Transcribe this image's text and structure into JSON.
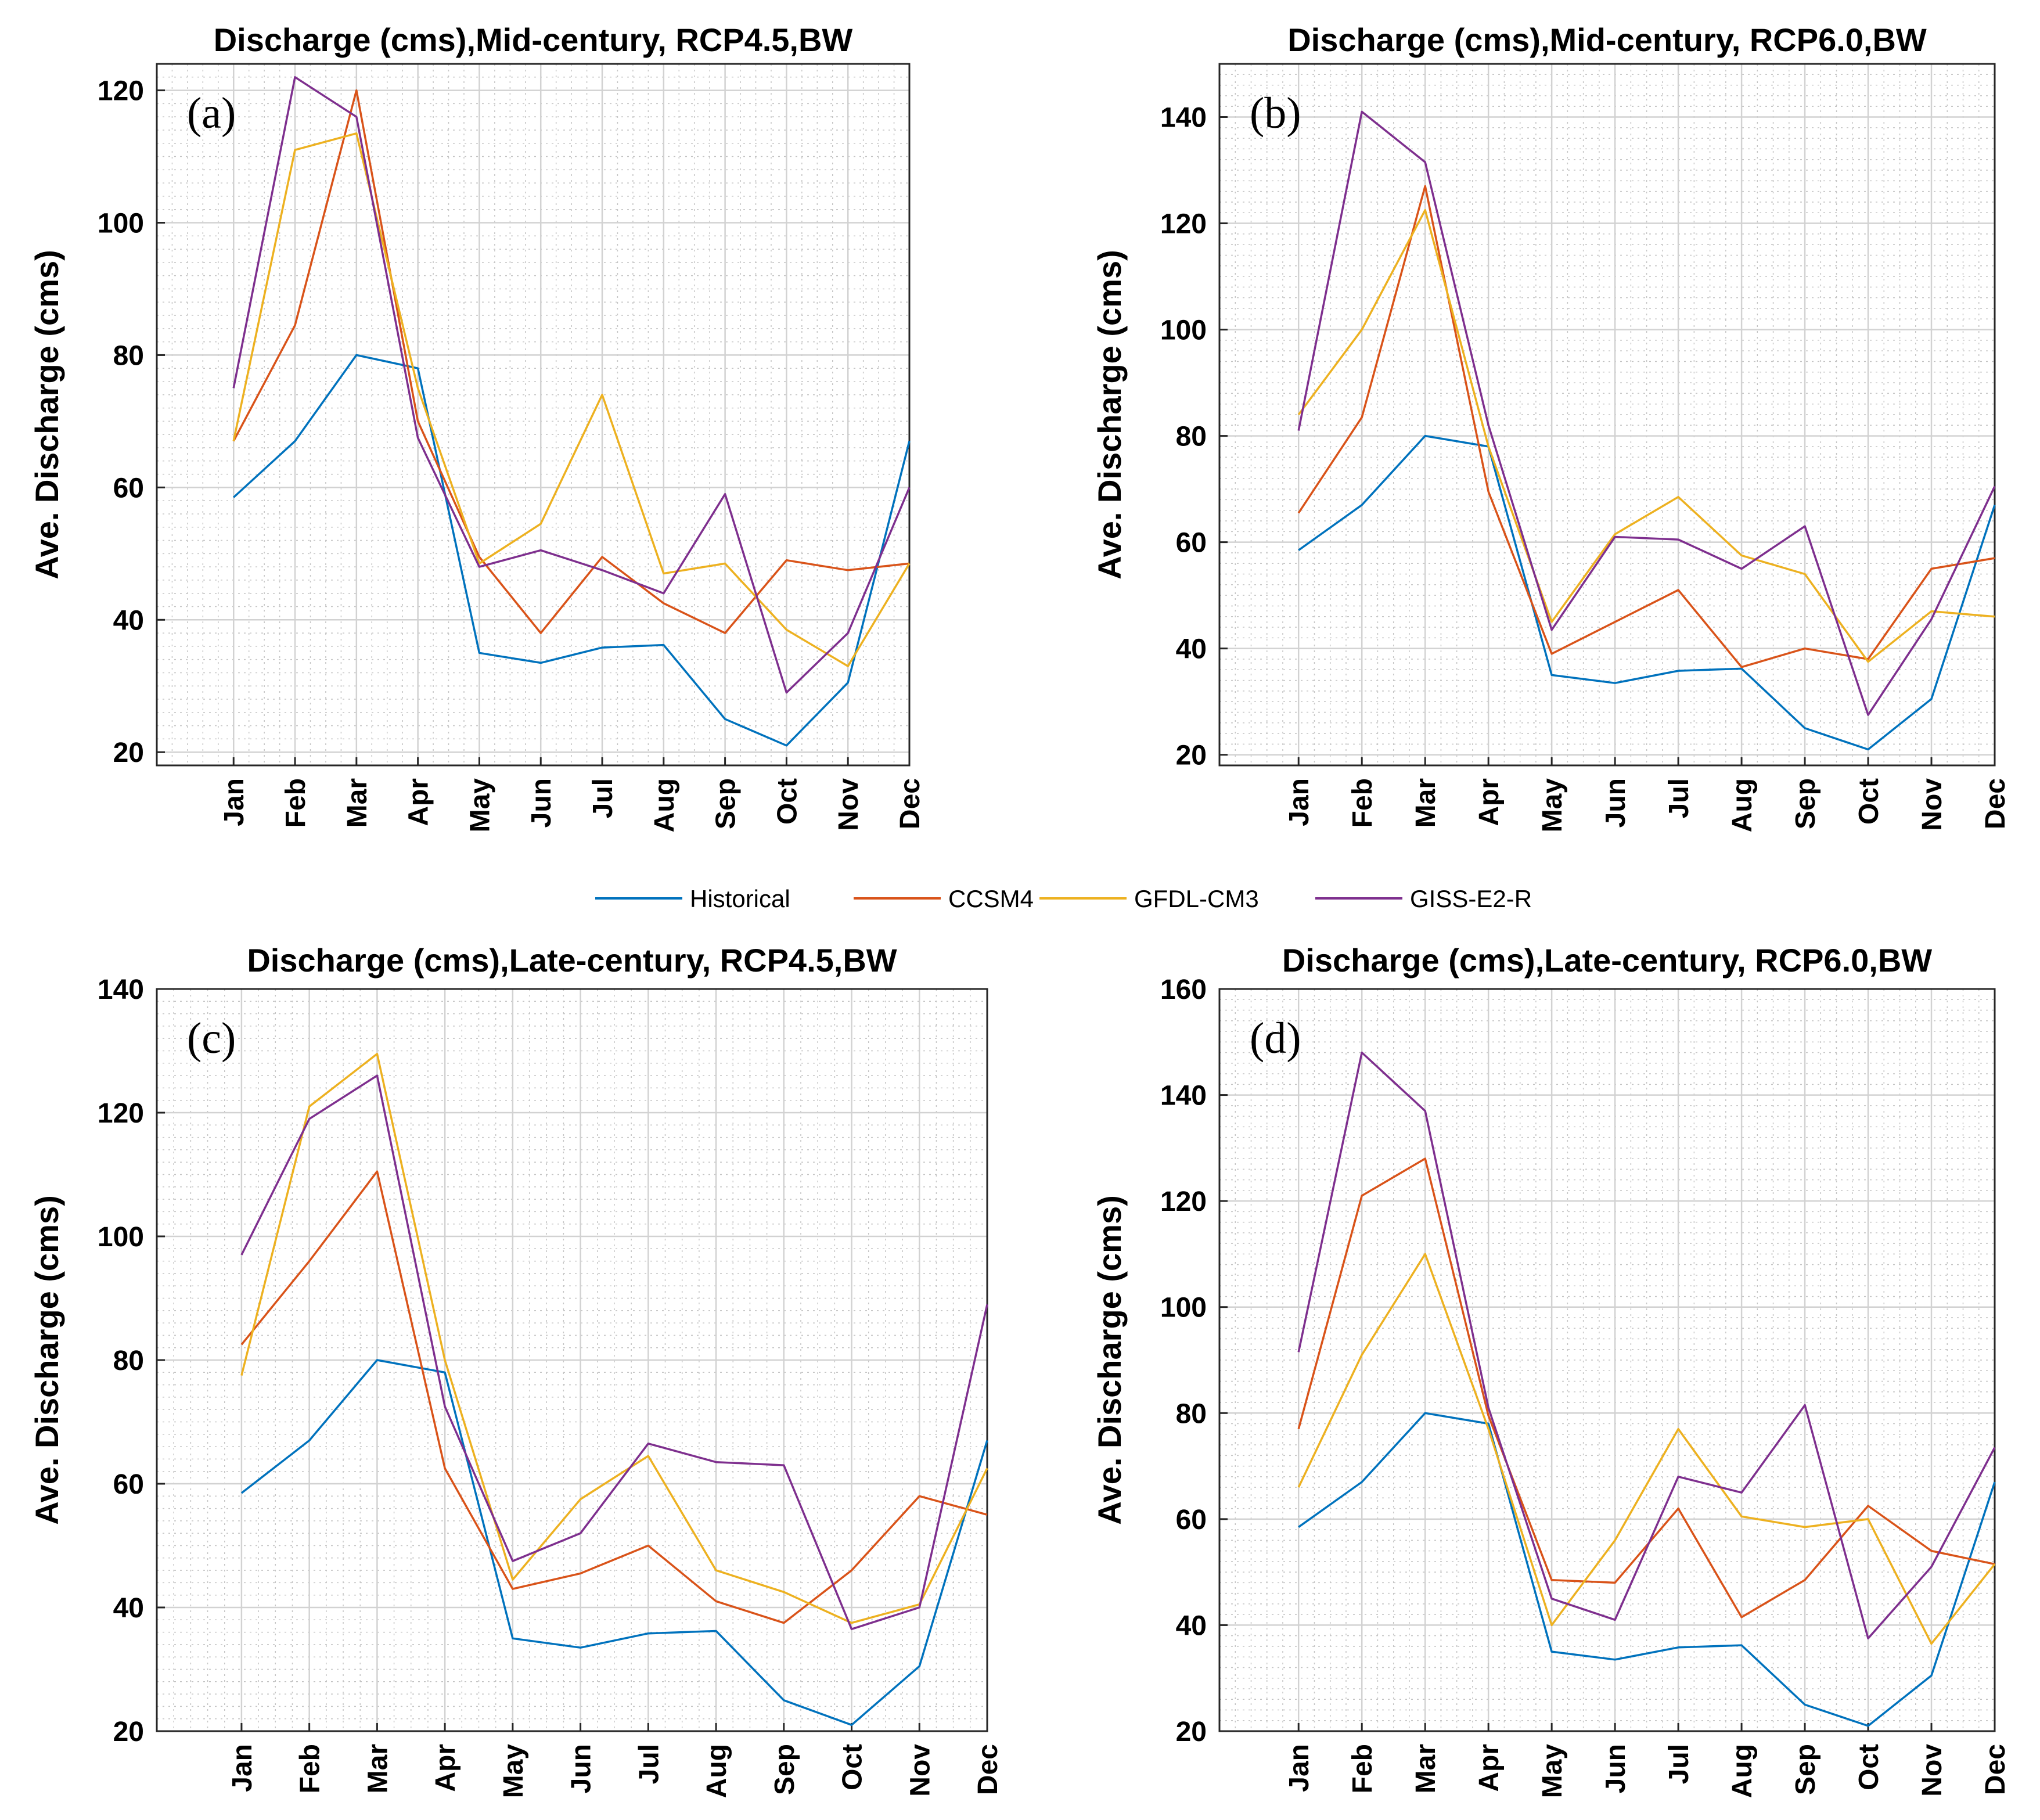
{
  "chart_data": [
    {
      "type": "line",
      "panel_label": "(a)",
      "title": "Discharge (cms),Mid-century, RCP4.5,BW",
      "xlabel": "",
      "ylabel": "Ave. Discharge (cms)",
      "categories": [
        "Jan",
        "Feb",
        "Mar",
        "Apr",
        "May",
        "Jun",
        "Jul",
        "Aug",
        "Sep",
        "Oct",
        "Nov",
        "Dec"
      ],
      "ylim": [
        18,
        124
      ],
      "yticks": [
        20,
        40,
        60,
        80,
        100,
        120
      ],
      "grid": true,
      "series": [
        {
          "name": "Historical",
          "values": [
            58.5,
            67,
            80,
            78,
            35,
            33.5,
            35.8,
            36.2,
            25,
            21,
            30.5,
            67
          ]
        },
        {
          "name": "CCSM4",
          "values": [
            67,
            84.5,
            120,
            70,
            49.5,
            38,
            49.5,
            42.5,
            38,
            49,
            47.5,
            48.5
          ]
        },
        {
          "name": "GFDL-CM3",
          "values": [
            67,
            111,
            113.5,
            75,
            48.5,
            54.5,
            74,
            47,
            48.5,
            38.5,
            33,
            48.5
          ]
        },
        {
          "name": "GISS-E2-R",
          "values": [
            75,
            122,
            116,
            67.5,
            48,
            50.5,
            47.5,
            44,
            59,
            29,
            38,
            60
          ]
        }
      ]
    },
    {
      "type": "line",
      "panel_label": "(b)",
      "title": "Discharge (cms),Mid-century, RCP6.0,BW",
      "xlabel": "",
      "ylabel": "Ave. Discharge (cms)",
      "categories": [
        "Jan",
        "Feb",
        "Mar",
        "Apr",
        "May",
        "Jun",
        "Jul",
        "Aug",
        "Sep",
        "Oct",
        "Nov",
        "Dec"
      ],
      "ylim": [
        18,
        150
      ],
      "yticks": [
        20,
        40,
        60,
        80,
        100,
        120,
        140
      ],
      "grid": true,
      "series": [
        {
          "name": "Historical",
          "values": [
            58.5,
            67,
            80,
            78,
            35,
            33.5,
            35.8,
            36.2,
            25,
            21,
            30.5,
            67
          ]
        },
        {
          "name": "CCSM4",
          "values": [
            65.5,
            83.5,
            127,
            69.5,
            39,
            45,
            51,
            36.5,
            40,
            38,
            55,
            57
          ]
        },
        {
          "name": "GFDL-CM3",
          "values": [
            84,
            100,
            122.5,
            78,
            45,
            61.5,
            68.5,
            57.5,
            54,
            37.5,
            47,
            46
          ]
        },
        {
          "name": "GISS-E2-R",
          "values": [
            81,
            141,
            131.5,
            82,
            43.5,
            61,
            60.5,
            55,
            63,
            27.5,
            45.5,
            70.5
          ]
        }
      ]
    },
    {
      "type": "line",
      "panel_label": "(c)",
      "title": "Discharge (cms),Late-century, RCP4.5,BW",
      "xlabel": "",
      "ylabel": "Ave. Discharge (cms)",
      "categories": [
        "Jan",
        "Feb",
        "Mar",
        "Apr",
        "May",
        "Jun",
        "Jul",
        "Aug",
        "Sep",
        "Oct",
        "Nov",
        "Dec"
      ],
      "ylim": [
        20,
        140
      ],
      "yticks": [
        20,
        40,
        60,
        80,
        100,
        120,
        140
      ],
      "grid": true,
      "series": [
        {
          "name": "Historical",
          "values": [
            58.5,
            67,
            80,
            78,
            35,
            33.5,
            35.8,
            36.2,
            25,
            21,
            30.5,
            67
          ]
        },
        {
          "name": "CCSM4",
          "values": [
            82.5,
            96,
            110.5,
            62.5,
            43,
            45.5,
            50,
            41,
            37.5,
            46,
            58,
            55
          ]
        },
        {
          "name": "GFDL-CM3",
          "values": [
            77.5,
            121,
            129.5,
            80,
            44.5,
            57.5,
            64.5,
            46,
            42.5,
            37.5,
            40.5,
            62.5
          ]
        },
        {
          "name": "GISS-E2-R",
          "values": [
            97,
            119,
            126,
            72.5,
            47.5,
            52,
            66.5,
            63.5,
            63,
            36.5,
            40,
            89
          ]
        }
      ]
    },
    {
      "type": "line",
      "panel_label": "(d)",
      "title": "Discharge (cms),Late-century, RCP6.0,BW",
      "xlabel": "",
      "ylabel": "Ave. Discharge (cms)",
      "categories": [
        "Jan",
        "Feb",
        "Mar",
        "Apr",
        "May",
        "Jun",
        "Jul",
        "Aug",
        "Sep",
        "Oct",
        "Nov",
        "Dec"
      ],
      "ylim": [
        20,
        160
      ],
      "yticks": [
        20,
        40,
        60,
        80,
        100,
        120,
        140,
        160
      ],
      "grid": true,
      "series": [
        {
          "name": "Historical",
          "values": [
            58.5,
            67,
            80,
            78,
            35,
            33.5,
            35.8,
            36.2,
            25,
            21,
            30.5,
            67
          ]
        },
        {
          "name": "CCSM4",
          "values": [
            77,
            121,
            128,
            79.5,
            48.5,
            48,
            62,
            41.5,
            48.5,
            62.5,
            54,
            51.5
          ]
        },
        {
          "name": "GFDL-CM3",
          "values": [
            66,
            91,
            110,
            77,
            40,
            56,
            77,
            60.5,
            58.5,
            60,
            36.5,
            51.5
          ]
        },
        {
          "name": "GISS-E2-R",
          "values": [
            91.5,
            148,
            137,
            81,
            45,
            41,
            68,
            65,
            81.5,
            37.5,
            51,
            73.5
          ]
        }
      ]
    }
  ],
  "legend": {
    "entries": [
      {
        "name": "Historical",
        "color": "#0072bd"
      },
      {
        "name": "CCSM4",
        "color": "#d95319"
      },
      {
        "name": "GFDL-CM3",
        "color": "#edb120"
      },
      {
        "name": "GISS-E2-R",
        "color": "#7e2f8e"
      }
    ]
  }
}
